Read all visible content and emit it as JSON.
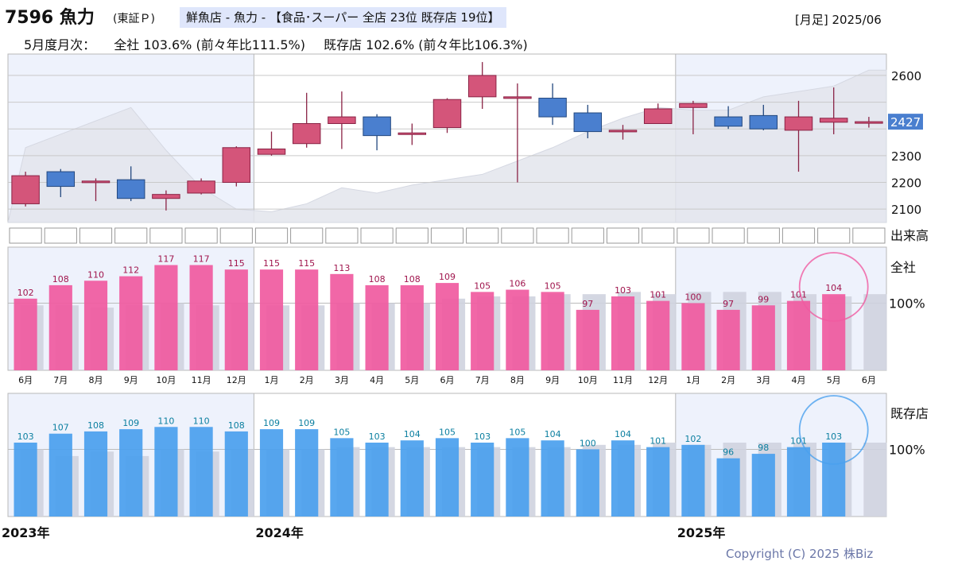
{
  "header": {
    "code_name": "7596 魚力",
    "exchange": "(東証Ｐ)",
    "category": "鮮魚店 - 魚力 - 【食品･スーパー 全店 23位 既存店 19位】",
    "period": "[月足] 2025/06"
  },
  "subheader": {
    "label": "5月度月次：",
    "all_stores": "全社 103.6% (前々年比111.5%)",
    "existing_stores": "既存店 102.6% (前々年比106.3%)"
  },
  "colors": {
    "up_candle": "#d4557a",
    "down_candle": "#4a7fcf",
    "all_bar": "#f05aa0",
    "existing_bar": "#4aa0ee",
    "prev_bar": "#cfd3df",
    "highlight_panel": "#eef2fc",
    "circle_all": "#f05aa0",
    "circle_existing": "#4aa0ee"
  },
  "chart_data": [
    {
      "type": "candlestick",
      "ylim": [
        2050,
        2680
      ],
      "yticks": [
        2100,
        2200,
        2300,
        2600
      ],
      "last_price": "2427",
      "volume_label": "出来高",
      "candles": [
        {
          "month": "2023-06",
          "open": 2120,
          "close": 2225,
          "high": 2240,
          "low": 2110
        },
        {
          "month": "2023-07",
          "open": 2240,
          "close": 2185,
          "high": 2250,
          "low": 2145
        },
        {
          "month": "2023-08",
          "open": 2205,
          "close": 2205,
          "high": 2215,
          "low": 2130
        },
        {
          "month": "2023-09",
          "open": 2210,
          "close": 2140,
          "high": 2260,
          "low": 2130
        },
        {
          "month": "2023-10",
          "open": 2140,
          "close": 2155,
          "high": 2170,
          "low": 2095
        },
        {
          "month": "2023-11",
          "open": 2160,
          "close": 2205,
          "high": 2215,
          "low": 2155
        },
        {
          "month": "2023-12",
          "open": 2200,
          "close": 2330,
          "high": 2335,
          "low": 2185
        },
        {
          "month": "2024-01",
          "open": 2305,
          "close": 2325,
          "high": 2390,
          "low": 2300
        },
        {
          "month": "2024-02",
          "open": 2345,
          "close": 2420,
          "high": 2535,
          "low": 2330
        },
        {
          "month": "2024-03",
          "open": 2420,
          "close": 2445,
          "high": 2540,
          "low": 2325
        },
        {
          "month": "2024-04",
          "open": 2445,
          "close": 2375,
          "high": 2455,
          "low": 2320
        },
        {
          "month": "2024-05",
          "open": 2385,
          "close": 2385,
          "high": 2420,
          "low": 2340
        },
        {
          "month": "2024-06",
          "open": 2405,
          "close": 2510,
          "high": 2515,
          "low": 2385
        },
        {
          "month": "2024-07",
          "open": 2520,
          "close": 2600,
          "high": 2650,
          "low": 2475
        },
        {
          "month": "2024-08",
          "open": 2520,
          "close": 2520,
          "high": 2570,
          "low": 2200
        },
        {
          "month": "2024-09",
          "open": 2515,
          "close": 2445,
          "high": 2570,
          "low": 2415
        },
        {
          "month": "2024-10",
          "open": 2460,
          "close": 2390,
          "high": 2490,
          "low": 2365
        },
        {
          "month": "2024-11",
          "open": 2395,
          "close": 2395,
          "high": 2415,
          "low": 2360
        },
        {
          "month": "2024-12",
          "open": 2420,
          "close": 2475,
          "high": 2495,
          "low": 2420
        },
        {
          "month": "2025-01",
          "open": 2480,
          "close": 2495,
          "high": 2505,
          "low": 2380
        },
        {
          "month": "2025-02",
          "open": 2445,
          "close": 2410,
          "high": 2485,
          "low": 2400
        },
        {
          "month": "2025-03",
          "open": 2450,
          "close": 2400,
          "high": 2490,
          "low": 2395
        },
        {
          "month": "2025-04",
          "open": 2395,
          "close": 2445,
          "high": 2505,
          "low": 2240
        },
        {
          "month": "2025-05",
          "open": 2425,
          "close": 2440,
          "high": 2555,
          "low": 2380
        },
        {
          "month": "2025-06",
          "open": 2427,
          "close": 2427,
          "high": 2445,
          "low": 2405
        }
      ],
      "shadow_line": [
        2330,
        2380,
        2430,
        2480,
        2320,
        2180,
        2100,
        2090,
        2120,
        2180,
        2160,
        2190,
        2210,
        2230,
        2280,
        2330,
        2390,
        2440,
        2480,
        2470,
        2470,
        2520,
        2540,
        2560,
        2620
      ],
      "shadow_ylim": [
        2050,
        2680
      ]
    },
    {
      "type": "bar",
      "title": "全社",
      "reference_label": "100%",
      "ylim": [
        70,
        125
      ],
      "categories": [
        "6月",
        "7月",
        "8月",
        "9月",
        "10月",
        "11月",
        "12月",
        "1月",
        "2月",
        "3月",
        "4月",
        "5月",
        "6月",
        "7月",
        "8月",
        "9月",
        "10月",
        "11月",
        "12月",
        "1月",
        "2月",
        "3月",
        "4月",
        "5月",
        "6月"
      ],
      "series": [
        {
          "values": [
            102,
            108,
            110,
            112,
            117,
            117,
            115,
            115,
            115,
            113,
            108,
            108,
            109,
            105,
            106,
            105,
            97,
            103,
            101,
            100,
            97,
            99,
            101,
            104,
            null
          ]
        },
        {
          "values": [
            99,
            99,
            98,
            99,
            100,
            99,
            100,
            99,
            99,
            100,
            100,
            100,
            102,
            103,
            103,
            104,
            104,
            105,
            104,
            105,
            105,
            105,
            104,
            103,
            104
          ]
        }
      ]
    },
    {
      "type": "bar",
      "title": "既存店",
      "reference_label": "100%",
      "ylim": [
        70,
        125
      ],
      "series": [
        {
          "values": [
            103,
            107,
            108,
            109,
            110,
            110,
            108,
            109,
            109,
            105,
            103,
            104,
            105,
            103,
            105,
            104,
            100,
            104,
            101,
            102,
            96,
            98,
            101,
            103,
            null
          ]
        },
        {
          "values": [
            100,
            97,
            99,
            97,
            100,
            99,
            100,
            100,
            100,
            101,
            101,
            101,
            101,
            101,
            101,
            101,
            102,
            102,
            103,
            102,
            103,
            103,
            103,
            103,
            103
          ]
        }
      ],
      "year_labels": [
        {
          "label": "2023年",
          "index": 0
        },
        {
          "label": "2024年",
          "index": 7
        },
        {
          "label": "2025年",
          "index": 19
        }
      ]
    }
  ],
  "footer": {
    "copyright": "Copyright (C) 2025 株Biz"
  }
}
